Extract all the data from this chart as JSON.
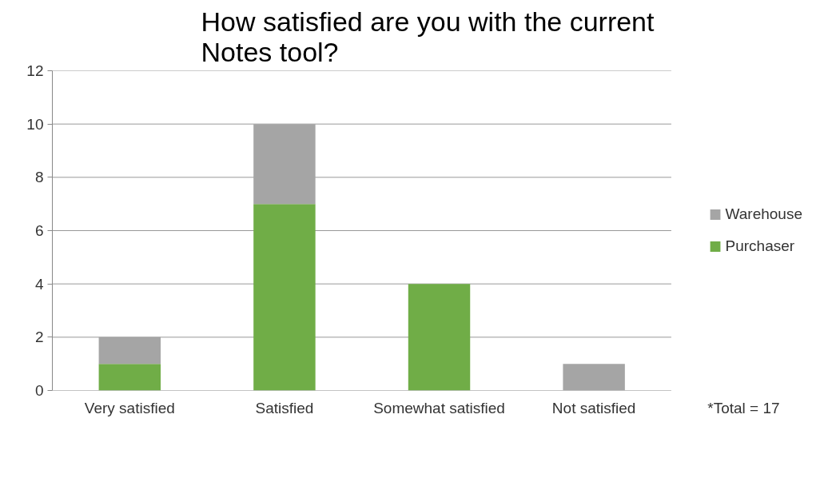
{
  "chart_data": {
    "type": "bar",
    "title": "How satisfied are you with the current\nNotes tool?",
    "categories": [
      "Very satisfied",
      "Satisfied",
      "Somewhat satisfied",
      "Not satisfied"
    ],
    "stacked": true,
    "series": [
      {
        "name": "Purchaser",
        "color": "#70ad47",
        "values": [
          1,
          7,
          4,
          0
        ]
      },
      {
        "name": "Warehouse",
        "color": "#a5a5a5",
        "values": [
          1,
          3,
          0,
          1
        ]
      }
    ],
    "ylim": [
      0,
      12
    ],
    "yticks": [
      0,
      2,
      4,
      6,
      8,
      10,
      12
    ],
    "grid": "y",
    "legend": "right",
    "annotations": [
      "*Total = 17"
    ]
  }
}
